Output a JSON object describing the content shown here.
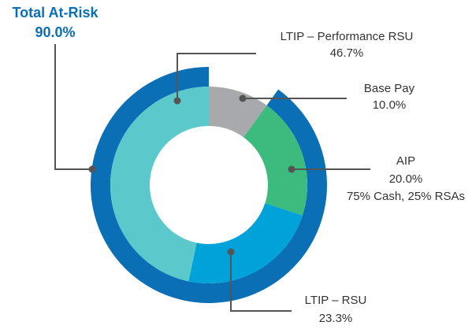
{
  "chart_data": {
    "type": "donut",
    "categories": [
      "Base Pay",
      "AIP",
      "LTIP – RSU",
      "LTIP – Performance RSU"
    ],
    "values": [
      10.0,
      20.0,
      23.3,
      46.7
    ],
    "value_labels": [
      "10.0%",
      "20.0%",
      "23.3%",
      "46.7%"
    ],
    "colors": [
      "#a7a9ac",
      "#3dba7e",
      "#00a3d9",
      "#5bc8cc"
    ],
    "annotations": [
      {
        "category": "AIP",
        "text": "75% Cash, 25% RSAs"
      }
    ],
    "total": {
      "name": "Total At-Risk",
      "value": 90.0,
      "value_label": "90.0%",
      "color": "#0a6fb5"
    }
  }
}
